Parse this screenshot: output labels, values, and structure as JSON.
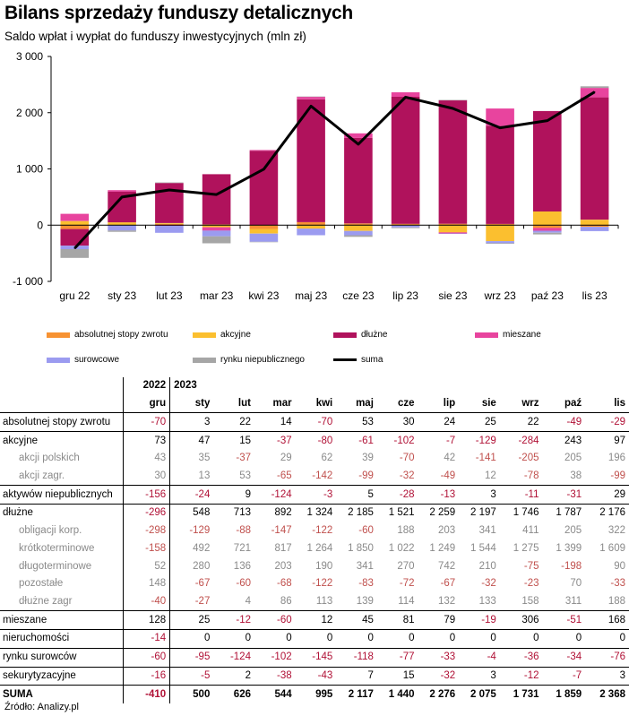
{
  "title": "Bilans sprzedaży funduszy detalicznych",
  "subtitle": "Saldo wpłat i wypłat do funduszy inwestycyjnych (mln zł)",
  "source": "Źródło: Analizy.pl",
  "colors": {
    "absolutnej": "#f79232",
    "akcyjne": "#fbbf2f",
    "dluzne": "#b0125c",
    "mieszane": "#e8449e",
    "surowcowe": "#9b9bf0",
    "rynku_niepublicznego": "#a6a6a6",
    "suma": "#000000"
  },
  "chart_data": {
    "type": "bar",
    "stacked": true,
    "title": "Bilans sprzedaży funduszy detalicznych",
    "subtitle": "Saldo wpłat i wypłat do funduszy inwestycyjnych (mln zł)",
    "categories": [
      "gru 22",
      "sty 23",
      "lut 23",
      "mar 23",
      "kwi 23",
      "maj 23",
      "cze 23",
      "lip 23",
      "sie 23",
      "wrz 23",
      "paź 23",
      "lis 23"
    ],
    "ylim": [
      -1000,
      3000
    ],
    "yticks": [
      -1000,
      0,
      1000,
      2000,
      3000
    ],
    "ytick_labels": [
      "-1 000",
      "0",
      "1 000",
      "2 000",
      "3 000"
    ],
    "grid": false,
    "legend_position": "bottom",
    "series": [
      {
        "name": "absolutnej stopy zwrotu",
        "key": "absolutnej",
        "values": [
          -70,
          3,
          22,
          14,
          -70,
          53,
          30,
          24,
          25,
          22,
          -49,
          -29
        ]
      },
      {
        "name": "akcyjne",
        "key": "akcyjne",
        "values": [
          73,
          47,
          15,
          -37,
          -80,
          -61,
          -102,
          -7,
          -129,
          -284,
          243,
          97
        ]
      },
      {
        "name": "dłużne",
        "key": "dluzne",
        "values": [
          -296,
          548,
          713,
          892,
          1324,
          2185,
          1521,
          2259,
          2197,
          1746,
          1787,
          2176
        ]
      },
      {
        "name": "mieszane",
        "key": "mieszane",
        "values": [
          128,
          25,
          -12,
          -60,
          12,
          45,
          81,
          79,
          -19,
          306,
          -51,
          168
        ]
      },
      {
        "name": "surowcowe",
        "key": "surowcowe",
        "values": [
          -60,
          -95,
          -124,
          -102,
          -145,
          -118,
          -77,
          -33,
          -4,
          -36,
          -34,
          -76
        ]
      },
      {
        "name": "rynku niepublicznego",
        "key": "rynku_niepublicznego",
        "values": [
          -156,
          -24,
          9,
          -124,
          -3,
          5,
          -28,
          -13,
          3,
          -11,
          -31,
          29
        ]
      }
    ],
    "line": {
      "name": "suma",
      "key": "suma",
      "values": [
        -410,
        500,
        626,
        544,
        995,
        2117,
        1440,
        2276,
        2075,
        1731,
        1859,
        2368
      ]
    }
  },
  "legend": [
    {
      "label": "absolutnej stopy zwrotu",
      "key": "absolutnej",
      "kind": "bar"
    },
    {
      "label": "akcyjne",
      "key": "akcyjne",
      "kind": "bar"
    },
    {
      "label": "dłużne",
      "key": "dluzne",
      "kind": "bar"
    },
    {
      "label": "mieszane",
      "key": "mieszane",
      "kind": "bar"
    },
    {
      "label": "surowcowe",
      "key": "surowcowe",
      "kind": "bar"
    },
    {
      "label": "rynku niepublicznego",
      "key": "rynku_niepublicznego",
      "kind": "bar"
    },
    {
      "label": "suma",
      "key": "suma",
      "kind": "line"
    }
  ],
  "table": {
    "years": [
      "2022",
      "2023"
    ],
    "months": [
      "gru",
      "sty",
      "lut",
      "mar",
      "kwi",
      "maj",
      "cze",
      "lip",
      "sie",
      "wrz",
      "paź",
      "lis"
    ],
    "rows": [
      {
        "label": "absolutnej stopy zwrotu",
        "level": 0,
        "sep": false,
        "values": [
          "-70",
          "3",
          "22",
          "14",
          "-70",
          "53",
          "30",
          "24",
          "25",
          "22",
          "-49",
          "-29"
        ]
      },
      {
        "label": "akcyjne",
        "level": 0,
        "sep": true,
        "values": [
          "73",
          "47",
          "15",
          "-37",
          "-80",
          "-61",
          "-102",
          "-7",
          "-129",
          "-284",
          "243",
          "97"
        ]
      },
      {
        "label": "akcji polskich",
        "level": 1,
        "sep": false,
        "values": [
          "43",
          "35",
          "-37",
          "29",
          "62",
          "39",
          "-70",
          "42",
          "-141",
          "-205",
          "205",
          "196"
        ]
      },
      {
        "label": "akcji zagr.",
        "level": 1,
        "sep": false,
        "values": [
          "30",
          "13",
          "53",
          "-65",
          "-142",
          "-99",
          "-32",
          "-49",
          "12",
          "-78",
          "38",
          "-99"
        ]
      },
      {
        "label": "aktywów niepublicznych",
        "level": 0,
        "sep": true,
        "values": [
          "-156",
          "-24",
          "9",
          "-124",
          "-3",
          "5",
          "-28",
          "-13",
          "3",
          "-11",
          "-31",
          "29"
        ]
      },
      {
        "label": "dłużne",
        "level": 0,
        "sep": true,
        "values": [
          "-296",
          "548",
          "713",
          "892",
          "1 324",
          "2 185",
          "1 521",
          "2 259",
          "2 197",
          "1 746",
          "1 787",
          "2 176"
        ]
      },
      {
        "label": "obligacji korp.",
        "level": 1,
        "sep": false,
        "values": [
          "-298",
          "-129",
          "-88",
          "-147",
          "-122",
          "-60",
          "188",
          "203",
          "341",
          "411",
          "205",
          "322"
        ]
      },
      {
        "label": "krótkoterminowe",
        "level": 1,
        "sep": false,
        "values": [
          "-158",
          "492",
          "721",
          "817",
          "1 264",
          "1 850",
          "1 022",
          "1 249",
          "1 544",
          "1 275",
          "1 399",
          "1 609"
        ]
      },
      {
        "label": "długoterminowe",
        "level": 1,
        "sep": false,
        "values": [
          "52",
          "280",
          "136",
          "203",
          "190",
          "341",
          "270",
          "742",
          "210",
          "-75",
          "-198",
          "90"
        ]
      },
      {
        "label": "pozostałe",
        "level": 1,
        "sep": false,
        "values": [
          "148",
          "-67",
          "-60",
          "-68",
          "-122",
          "-83",
          "-72",
          "-67",
          "-32",
          "-23",
          "70",
          "-33"
        ]
      },
      {
        "label": "dłużne zagr",
        "level": 1,
        "sep": false,
        "values": [
          "-40",
          "-27",
          "4",
          "86",
          "113",
          "139",
          "114",
          "132",
          "133",
          "158",
          "311",
          "188"
        ]
      },
      {
        "label": "mieszane",
        "level": 0,
        "sep": true,
        "values": [
          "128",
          "25",
          "-12",
          "-60",
          "12",
          "45",
          "81",
          "79",
          "-19",
          "306",
          "-51",
          "168"
        ]
      },
      {
        "label": "nieruchomości",
        "level": 0,
        "sep": true,
        "values": [
          "-14",
          "0",
          "0",
          "0",
          "0",
          "0",
          "0",
          "0",
          "0",
          "0",
          "0",
          "0"
        ]
      },
      {
        "label": "rynku surowców",
        "level": 0,
        "sep": true,
        "values": [
          "-60",
          "-95",
          "-124",
          "-102",
          "-145",
          "-118",
          "-77",
          "-33",
          "-4",
          "-36",
          "-34",
          "-76"
        ]
      },
      {
        "label": "sekurytyzacyjne",
        "level": 0,
        "sep": true,
        "values": [
          "-16",
          "-5",
          "2",
          "-38",
          "-43",
          "7",
          "15",
          "-32",
          "3",
          "-12",
          "-7",
          "3"
        ]
      },
      {
        "label": "SUMA",
        "level": 0,
        "sep": true,
        "bold": true,
        "values": [
          "-410",
          "500",
          "626",
          "544",
          "995",
          "2 117",
          "1 440",
          "2 276",
          "2 075",
          "1 731",
          "1 859",
          "2 368"
        ]
      }
    ]
  }
}
